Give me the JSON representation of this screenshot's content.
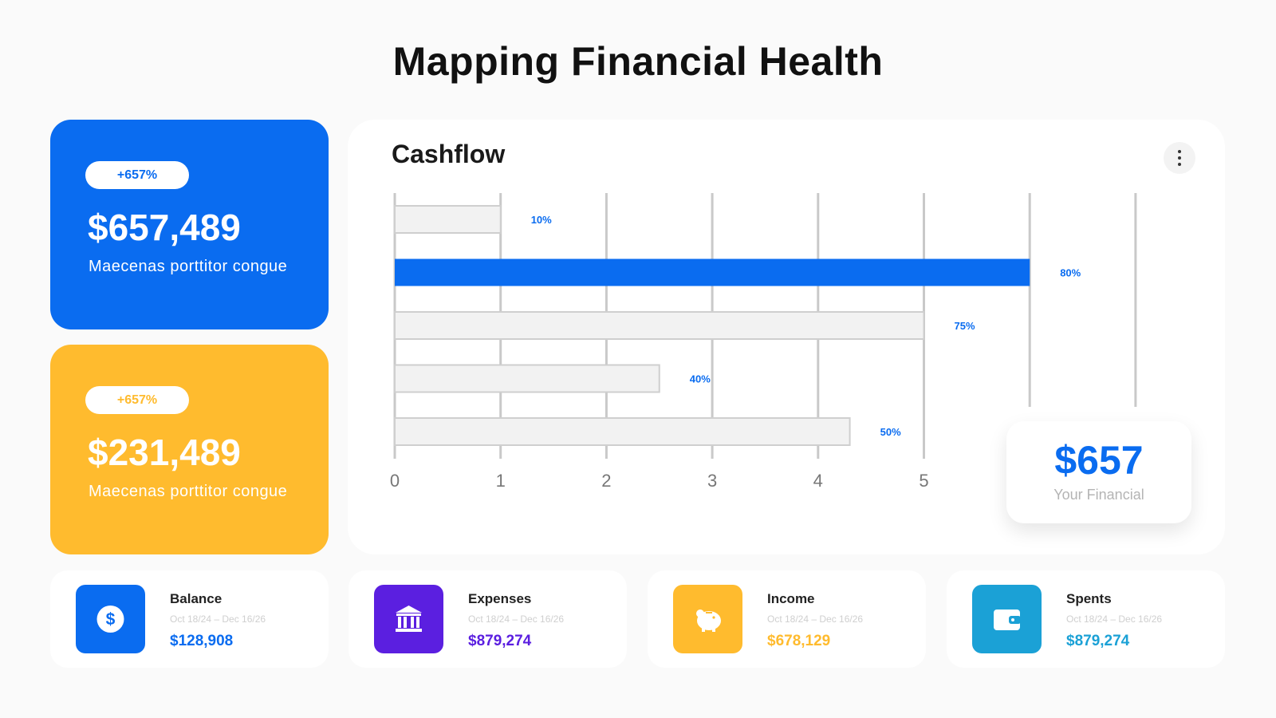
{
  "page": {
    "title": "Mapping Financial Health"
  },
  "colors": {
    "blue": "#0A6CF0",
    "purple": "#5B1FE0",
    "yellow": "#FFBB2E",
    "teal": "#1BA1D6",
    "bar_inactive": "#F2F2F2"
  },
  "stat_cards": [
    {
      "badge": "+657%",
      "amount": "$657,489",
      "description": "Maecenas porttitor congue",
      "color": "#0A6CF0"
    },
    {
      "badge": "+657%",
      "amount": "$231,489",
      "description": "Maecenas porttitor congue",
      "color": "#FFBB2E"
    }
  ],
  "chart_panel": {
    "title": "Cashflow",
    "menu_icon": "more-vertical-icon",
    "callout": {
      "value": "$657",
      "label": "Your Financial"
    }
  },
  "chart_data": {
    "type": "bar",
    "orientation": "horizontal",
    "title": "Cashflow",
    "x_ticks": [
      "0",
      "1",
      "2",
      "3",
      "4",
      "5"
    ],
    "xlim": [
      0,
      7
    ],
    "grid": true,
    "values": [
      1.0,
      6.0,
      5.0,
      2.5,
      4.3
    ],
    "data_labels": [
      "10%",
      "80%",
      "75%",
      "40%",
      "50%"
    ],
    "highlight_index": 1
  },
  "info_cards": [
    {
      "title": "Balance",
      "date_range": "Oct 18/24 – Dec 16/26",
      "value": "$128,908",
      "color": "#0A6CF0",
      "icon": "dollar-icon"
    },
    {
      "title": "Expenses",
      "date_range": "Oct 18/24 – Dec 16/26",
      "value": "$879,274",
      "color": "#5B1FE0",
      "icon": "bank-icon"
    },
    {
      "title": "Income",
      "date_range": "Oct 18/24 – Dec 16/26",
      "value": "$678,129",
      "color": "#FFBB2E",
      "icon": "piggy-bank-icon"
    },
    {
      "title": "Spents",
      "date_range": "Oct 18/24 – Dec 16/26",
      "value": "$879,274",
      "color": "#1BA1D6",
      "icon": "wallet-icon"
    }
  ]
}
